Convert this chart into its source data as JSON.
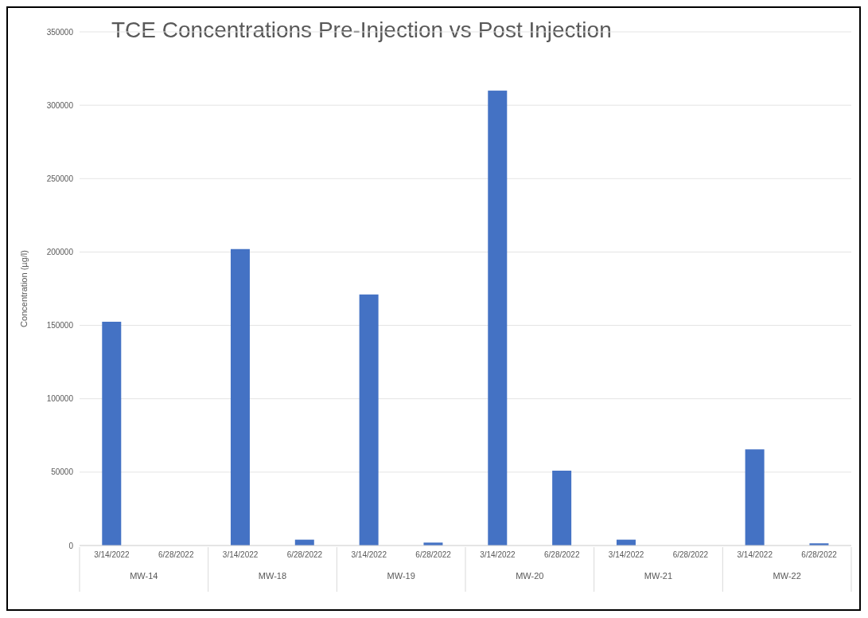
{
  "chart_data": {
    "type": "bar",
    "title": "TCE Concentrations Pre-Injection vs Post Injection",
    "ylabel": "Concentration  (µg/l)",
    "categories": [
      "3/14/2022",
      "6/28/2022",
      "3/14/2022",
      "6/28/2022",
      "3/14/2022",
      "6/28/2022",
      "3/14/2022",
      "6/28/2022",
      "3/14/2022",
      "6/28/2022",
      "3/14/2022",
      "6/28/2022"
    ],
    "values": [
      152500,
      0,
      202000,
      4000,
      171000,
      2000,
      310000,
      51000,
      4000,
      0,
      65500,
      1500
    ],
    "color": "#4472c4",
    "ylim": [
      0,
      350000
    ],
    "yticks": [
      0,
      50000,
      100000,
      150000,
      200000,
      250000,
      300000,
      350000
    ],
    "grid": "y",
    "annotations": [
      "MW-14",
      "MW-18",
      "MW-19",
      "MW-20",
      "MW-21",
      "MW-22"
    ]
  }
}
